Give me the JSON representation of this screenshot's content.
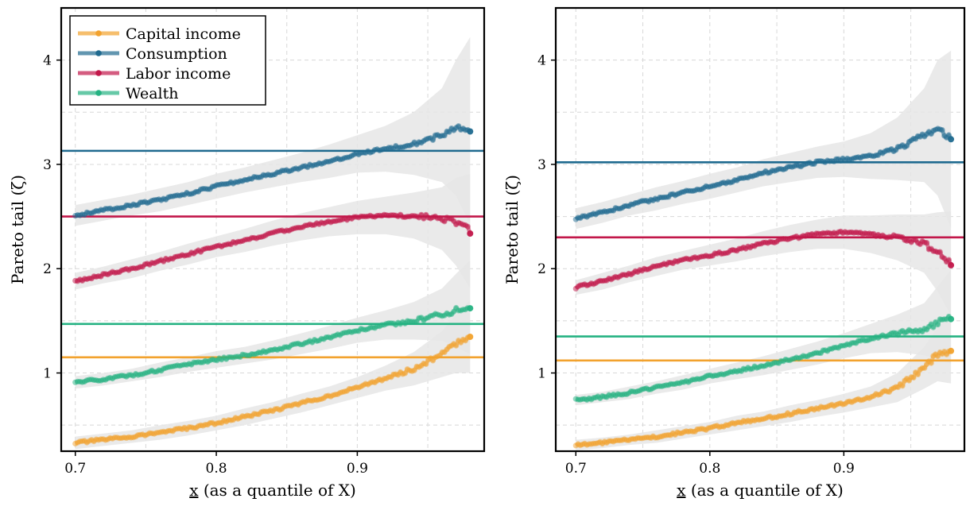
{
  "colors": {
    "capital": "#F2A22E",
    "consumption": "#1F6A8F",
    "labor": "#C2174A",
    "wealth": "#25B282",
    "band": "#E6E6E6",
    "grid": "#D8D8D8"
  },
  "chart_data": [
    {
      "type": "line",
      "xlabel": "x (as a quantile of X)",
      "ylabel": "Pareto tail (ζ)",
      "xlim": [
        0.69,
        0.99
      ],
      "ylim": [
        0.25,
        4.5
      ],
      "xticks": [
        "0.7",
        "0.8",
        "0.9"
      ],
      "yticks": [
        "1",
        "2",
        "3",
        "4"
      ],
      "grid": true,
      "legend": "top-left",
      "x": [
        0.7,
        0.72,
        0.74,
        0.76,
        0.78,
        0.8,
        0.82,
        0.84,
        0.86,
        0.88,
        0.9,
        0.92,
        0.94,
        0.96,
        0.97,
        0.98
      ],
      "series": [
        {
          "name": "Capital income",
          "color_key": "capital",
          "hline": 1.15,
          "values": [
            0.33,
            0.36,
            0.39,
            0.43,
            0.47,
            0.52,
            0.58,
            0.64,
            0.71,
            0.78,
            0.86,
            0.95,
            1.04,
            1.18,
            1.28,
            1.35
          ],
          "band": [
            0.06,
            0.06,
            0.06,
            0.07,
            0.07,
            0.07,
            0.08,
            0.08,
            0.09,
            0.09,
            0.1,
            0.12,
            0.16,
            0.22,
            0.28,
            0.35
          ]
        },
        {
          "name": "Consumption",
          "color_key": "consumption",
          "hline": 3.13,
          "values": [
            2.51,
            2.56,
            2.61,
            2.66,
            2.72,
            2.79,
            2.85,
            2.91,
            2.97,
            3.03,
            3.1,
            3.15,
            3.2,
            3.28,
            3.35,
            3.32
          ],
          "band": [
            0.1,
            0.1,
            0.1,
            0.11,
            0.11,
            0.12,
            0.12,
            0.13,
            0.14,
            0.16,
            0.18,
            0.22,
            0.3,
            0.45,
            0.65,
            0.9
          ]
        },
        {
          "name": "Labor income",
          "color_key": "labor",
          "hline": 2.5,
          "values": [
            1.88,
            1.94,
            2.0,
            2.07,
            2.14,
            2.21,
            2.27,
            2.34,
            2.4,
            2.45,
            2.49,
            2.51,
            2.51,
            2.48,
            2.45,
            2.36
          ],
          "band": [
            0.08,
            0.08,
            0.09,
            0.09,
            0.1,
            0.1,
            0.11,
            0.12,
            0.13,
            0.14,
            0.16,
            0.18,
            0.22,
            0.3,
            0.42,
            0.55
          ]
        },
        {
          "name": "Wealth",
          "color_key": "wealth",
          "hline": 1.47,
          "values": [
            0.91,
            0.94,
            0.98,
            1.03,
            1.08,
            1.13,
            1.17,
            1.22,
            1.28,
            1.34,
            1.41,
            1.46,
            1.5,
            1.56,
            1.6,
            1.63
          ],
          "band": [
            0.06,
            0.06,
            0.06,
            0.07,
            0.07,
            0.08,
            0.08,
            0.09,
            0.1,
            0.11,
            0.12,
            0.14,
            0.18,
            0.25,
            0.35,
            0.45
          ]
        }
      ]
    },
    {
      "type": "line",
      "xlabel": "x (as a quantile of X)",
      "ylabel": "Pareto tail (ζ)",
      "xlim": [
        0.685,
        0.99
      ],
      "ylim": [
        0.25,
        4.5
      ],
      "xticks": [
        "0.7",
        "0.8",
        "0.9"
      ],
      "yticks": [
        "1",
        "2",
        "3",
        "4"
      ],
      "grid": true,
      "legend": "none",
      "x": [
        0.7,
        0.72,
        0.74,
        0.76,
        0.78,
        0.8,
        0.82,
        0.84,
        0.86,
        0.88,
        0.9,
        0.92,
        0.94,
        0.96,
        0.97,
        0.98
      ],
      "series": [
        {
          "name": "Capital income",
          "color_key": "capital",
          "hline": 1.12,
          "values": [
            0.31,
            0.33,
            0.36,
            0.39,
            0.43,
            0.47,
            0.52,
            0.56,
            0.61,
            0.66,
            0.71,
            0.77,
            0.86,
            1.05,
            1.18,
            1.22
          ],
          "band": [
            0.05,
            0.05,
            0.05,
            0.06,
            0.06,
            0.06,
            0.07,
            0.07,
            0.08,
            0.08,
            0.09,
            0.1,
            0.14,
            0.2,
            0.26,
            0.32
          ]
        },
        {
          "name": "Consumption",
          "color_key": "consumption",
          "hline": 3.02,
          "values": [
            2.48,
            2.54,
            2.61,
            2.67,
            2.73,
            2.79,
            2.85,
            2.92,
            2.97,
            3.02,
            3.05,
            3.08,
            3.15,
            3.28,
            3.35,
            3.24
          ],
          "band": [
            0.1,
            0.1,
            0.1,
            0.11,
            0.11,
            0.12,
            0.12,
            0.13,
            0.14,
            0.15,
            0.17,
            0.22,
            0.3,
            0.45,
            0.65,
            0.85
          ]
        },
        {
          "name": "Labor income",
          "color_key": "labor",
          "hline": 2.3,
          "values": [
            1.82,
            1.88,
            1.95,
            2.02,
            2.08,
            2.13,
            2.18,
            2.24,
            2.29,
            2.33,
            2.35,
            2.33,
            2.3,
            2.24,
            2.16,
            2.05
          ],
          "band": [
            0.07,
            0.08,
            0.08,
            0.09,
            0.09,
            0.1,
            0.11,
            0.12,
            0.13,
            0.14,
            0.16,
            0.18,
            0.22,
            0.28,
            0.38,
            0.5
          ]
        },
        {
          "name": "Wealth",
          "color_key": "wealth",
          "hline": 1.35,
          "values": [
            0.74,
            0.77,
            0.81,
            0.86,
            0.91,
            0.97,
            1.02,
            1.07,
            1.13,
            1.19,
            1.26,
            1.33,
            1.38,
            1.42,
            1.48,
            1.54
          ],
          "band": [
            0.05,
            0.05,
            0.06,
            0.06,
            0.07,
            0.07,
            0.08,
            0.09,
            0.1,
            0.11,
            0.12,
            0.14,
            0.18,
            0.25,
            0.35,
            0.45
          ]
        }
      ]
    }
  ]
}
